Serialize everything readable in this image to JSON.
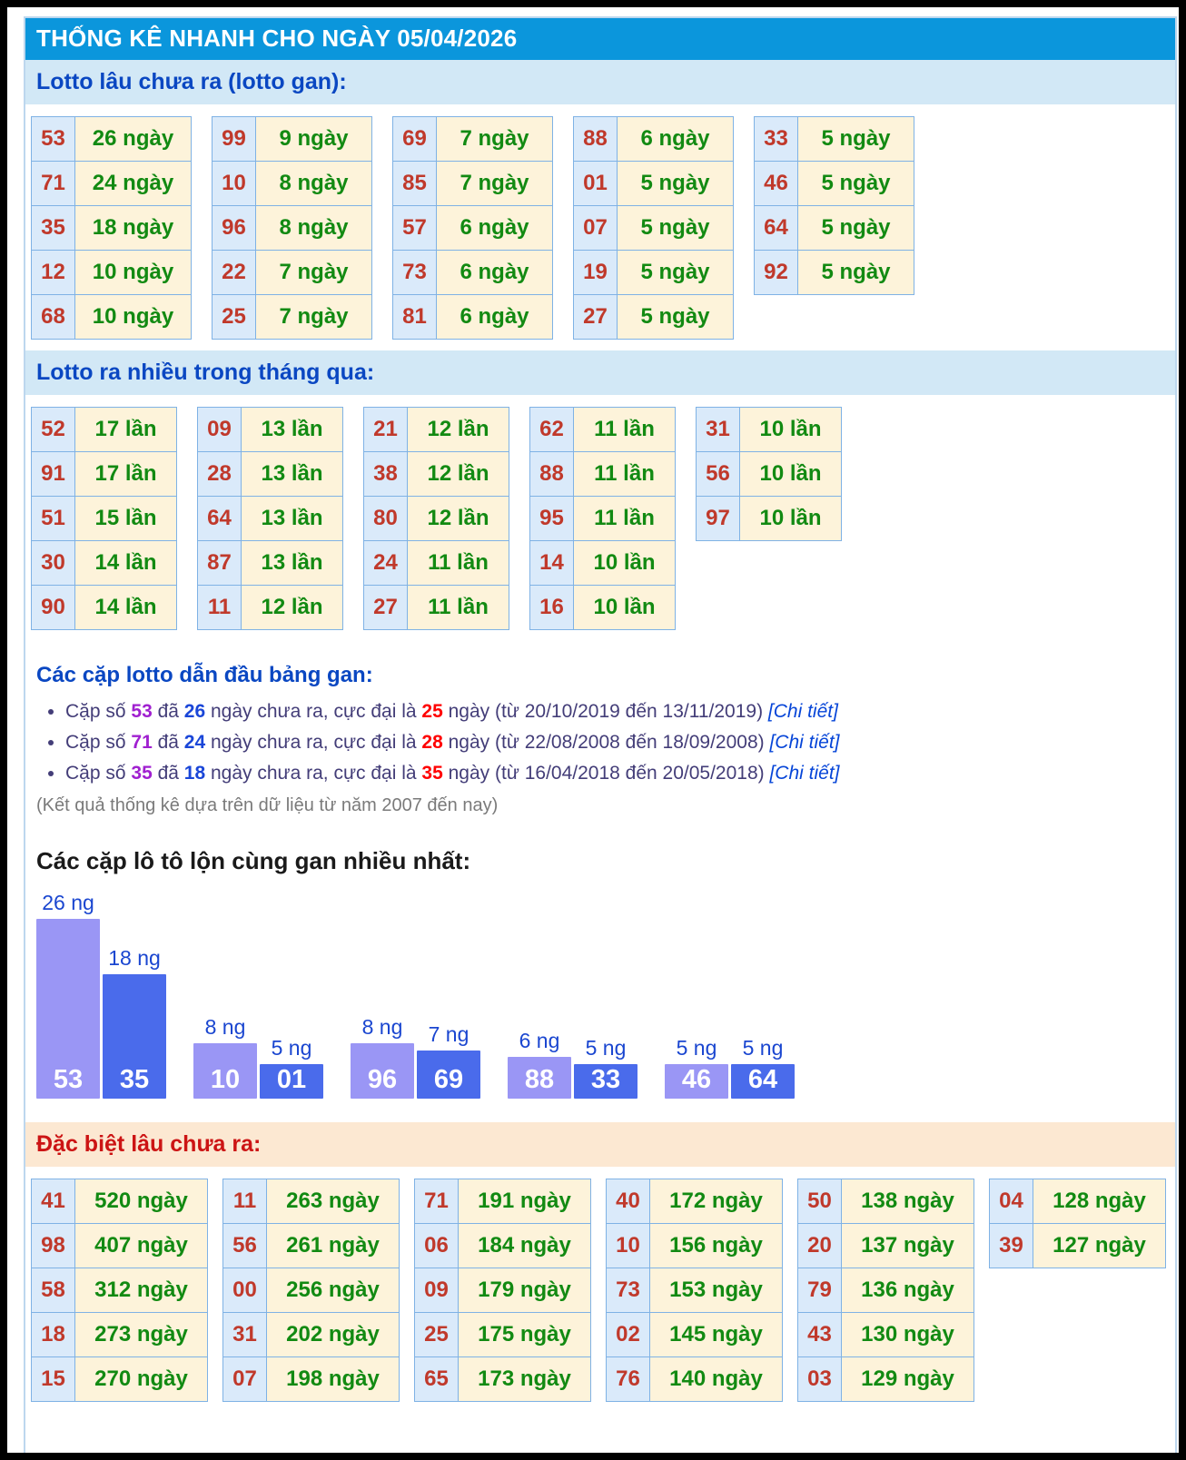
{
  "colors": {
    "title_bar_bg": "#0b96dc",
    "title_text": "#ffffff",
    "section_bar_bg": "#d2e8f6",
    "section_heading": "#0a47c2",
    "special_bar_bg": "#fce8d2",
    "special_heading": "#cc1414",
    "cell_number_bg": "#daeafa",
    "cell_value_bg": "#fdf3da",
    "cell_border": "#7fb2e5",
    "number_text": "#c0392b",
    "value_text": "#128a12",
    "pair_number": "#a020d0",
    "pair_days": "#1a46d8",
    "pair_max": "#ff0000",
    "link": "#0645d8",
    "body_text": "#433d78",
    "note_text": "#7a7a7a",
    "bar_light": "#9a96f5",
    "bar_dark": "#4a6beb",
    "bar_label": "#1a46d0"
  },
  "title": "THỐNG KÊ NHANH CHO NGÀY 05/04/2026",
  "sections": {
    "lotto_gan": {
      "heading": "Lotto lâu chưa ra (lotto gan):",
      "tables": [
        [
          [
            "53",
            "26 ngày"
          ],
          [
            "71",
            "24 ngày"
          ],
          [
            "35",
            "18 ngày"
          ],
          [
            "12",
            "10 ngày"
          ],
          [
            "68",
            "10 ngày"
          ]
        ],
        [
          [
            "99",
            "9 ngày"
          ],
          [
            "10",
            "8 ngày"
          ],
          [
            "96",
            "8 ngày"
          ],
          [
            "22",
            "7 ngày"
          ],
          [
            "25",
            "7 ngày"
          ]
        ],
        [
          [
            "69",
            "7 ngày"
          ],
          [
            "85",
            "7 ngày"
          ],
          [
            "57",
            "6 ngày"
          ],
          [
            "73",
            "6 ngày"
          ],
          [
            "81",
            "6 ngày"
          ]
        ],
        [
          [
            "88",
            "6 ngày"
          ],
          [
            "01",
            "5 ngày"
          ],
          [
            "07",
            "5 ngày"
          ],
          [
            "19",
            "5 ngày"
          ],
          [
            "27",
            "5 ngày"
          ]
        ],
        [
          [
            "33",
            "5 ngày"
          ],
          [
            "46",
            "5 ngày"
          ],
          [
            "64",
            "5 ngày"
          ],
          [
            "92",
            "5 ngày"
          ]
        ]
      ]
    },
    "lotto_month": {
      "heading": "Lotto ra nhiều trong tháng qua:",
      "tables": [
        [
          [
            "52",
            "17 lần"
          ],
          [
            "91",
            "17 lần"
          ],
          [
            "51",
            "15 lần"
          ],
          [
            "30",
            "14 lần"
          ],
          [
            "90",
            "14 lần"
          ]
        ],
        [
          [
            "09",
            "13 lần"
          ],
          [
            "28",
            "13 lần"
          ],
          [
            "64",
            "13 lần"
          ],
          [
            "87",
            "13 lần"
          ],
          [
            "11",
            "12 lần"
          ]
        ],
        [
          [
            "21",
            "12 lần"
          ],
          [
            "38",
            "12 lần"
          ],
          [
            "80",
            "12 lần"
          ],
          [
            "24",
            "11 lần"
          ],
          [
            "27",
            "11 lần"
          ]
        ],
        [
          [
            "62",
            "11 lần"
          ],
          [
            "88",
            "11 lần"
          ],
          [
            "95",
            "11 lần"
          ],
          [
            "14",
            "10 lần"
          ],
          [
            "16",
            "10 lần"
          ]
        ],
        [
          [
            "31",
            "10 lần"
          ],
          [
            "56",
            "10 lần"
          ],
          [
            "97",
            "10 lần"
          ]
        ]
      ]
    },
    "gan_pairs": {
      "heading": "Các cặp lotto dẫn đầu bảng gan:",
      "items": [
        {
          "prefix": "Cặp số",
          "number": "53",
          "conj": "đã",
          "days": "26",
          "mid": "ngày chưa ra, cực đại là",
          "max": "25",
          "unit": "ngày",
          "range": "(từ 20/10/2019 đến 13/11/2019)",
          "link": "[Chi tiết]"
        },
        {
          "prefix": "Cặp số",
          "number": "71",
          "conj": "đã",
          "days": "24",
          "mid": "ngày chưa ra, cực đại là",
          "max": "28",
          "unit": "ngày",
          "range": "(từ 22/08/2008 đến 18/09/2008)",
          "link": "[Chi tiết]"
        },
        {
          "prefix": "Cặp số",
          "number": "35",
          "conj": "đã",
          "days": "18",
          "mid": "ngày chưa ra, cực đại là",
          "max": "35",
          "unit": "ngày",
          "range": "(từ 16/04/2018 đến 20/05/2018)",
          "link": "[Chi tiết]"
        }
      ],
      "note": "(Kết quả thống kê dựa trên dữ liệu từ năm 2007 đến nay)"
    },
    "lon_pairs": {
      "heading": "Các cặp lô tô lộn cùng gan nhiều nhất:"
    },
    "dac_biet": {
      "heading": "Đặc biệt lâu chưa ra:",
      "tables": [
        [
          [
            "41",
            "520 ngày"
          ],
          [
            "98",
            "407 ngày"
          ],
          [
            "58",
            "312 ngày"
          ],
          [
            "18",
            "273 ngày"
          ],
          [
            "15",
            "270 ngày"
          ]
        ],
        [
          [
            "11",
            "263 ngày"
          ],
          [
            "56",
            "261 ngày"
          ],
          [
            "00",
            "256 ngày"
          ],
          [
            "31",
            "202 ngày"
          ],
          [
            "07",
            "198 ngày"
          ]
        ],
        [
          [
            "71",
            "191 ngày"
          ],
          [
            "06",
            "184 ngày"
          ],
          [
            "09",
            "179 ngày"
          ],
          [
            "25",
            "175 ngày"
          ],
          [
            "65",
            "173 ngày"
          ]
        ],
        [
          [
            "40",
            "172 ngày"
          ],
          [
            "10",
            "156 ngày"
          ],
          [
            "73",
            "153 ngày"
          ],
          [
            "02",
            "145 ngày"
          ],
          [
            "76",
            "140 ngày"
          ]
        ],
        [
          [
            "50",
            "138 ngày"
          ],
          [
            "20",
            "137 ngày"
          ],
          [
            "79",
            "136 ngày"
          ],
          [
            "43",
            "130 ngày"
          ],
          [
            "03",
            "129 ngày"
          ]
        ],
        [
          [
            "04",
            "128 ngày"
          ],
          [
            "39",
            "127 ngày"
          ]
        ]
      ]
    }
  },
  "chart_data": {
    "type": "bar",
    "title": "Các cặp lô tô lộn cùng gan nhiều nhất:",
    "categories": [
      "53",
      "35",
      "10",
      "01",
      "96",
      "69",
      "88",
      "33",
      "46",
      "64"
    ],
    "values": [
      26,
      18,
      8,
      5,
      8,
      7,
      6,
      5,
      5,
      5
    ],
    "value_labels": [
      "26 ng",
      "18 ng",
      "8 ng",
      "5 ng",
      "8 ng",
      "7 ng",
      "6 ng",
      "5 ng",
      "5 ng",
      "5 ng"
    ],
    "unit": "ng",
    "pairs": [
      [
        "53",
        "35"
      ],
      [
        "10",
        "01"
      ],
      [
        "96",
        "69"
      ],
      [
        "88",
        "33"
      ],
      [
        "46",
        "64"
      ]
    ],
    "xlabel": "",
    "ylabel": "",
    "ylim": [
      0,
      26
    ],
    "grid": false,
    "legend": false,
    "bar_color_pattern": [
      "light",
      "dark"
    ]
  }
}
